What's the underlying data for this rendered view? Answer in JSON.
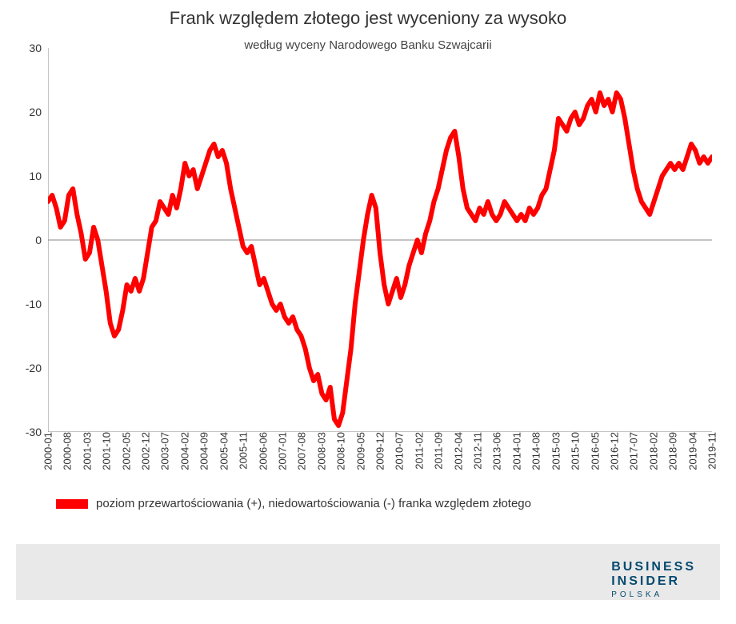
{
  "chart": {
    "type": "line",
    "title": "Frank względem złotego jest wyceniony za wysoko",
    "subtitle": "według wyceny Narodowego Banku Szwajcarii",
    "title_fontsize": 22,
    "subtitle_fontsize": 15,
    "background_color": "#ffffff",
    "line_color": "#ff0000",
    "line_width": 6,
    "zero_line_color": "#888888",
    "axis_color": "#888888",
    "ylim": [
      -30,
      30
    ],
    "ytick_step": 10,
    "yticks": [
      -30,
      -20,
      -10,
      0,
      10,
      20,
      30
    ],
    "xticks": [
      "2000-01",
      "2000-08",
      "2001-03",
      "2001-10",
      "2002-05",
      "2002-12",
      "2003-07",
      "2004-02",
      "2004-09",
      "2005-04",
      "2005-11",
      "2006-06",
      "2007-01",
      "2007-08",
      "2008-03",
      "2008-10",
      "2009-05",
      "2009-12",
      "2010-07",
      "2011-02",
      "2011-09",
      "2012-04",
      "2012-11",
      "2013-06",
      "2014-01",
      "2014-08",
      "2015-03",
      "2015-10",
      "2016-05",
      "2016-12",
      "2017-07",
      "2018-02",
      "2018-09",
      "2019-04",
      "2019-11"
    ],
    "xtick_fontsize": 13,
    "ytick_fontsize": 14,
    "series": [
      {
        "name": "overvaluation",
        "values": [
          6,
          7,
          5,
          2,
          3,
          7,
          8,
          4,
          1,
          -3,
          -2,
          2,
          0,
          -4,
          -8,
          -13,
          -15,
          -14,
          -11,
          -7,
          -8,
          -6,
          -8,
          -6,
          -2,
          2,
          3,
          6,
          5,
          4,
          7,
          5,
          8,
          12,
          10,
          11,
          8,
          10,
          12,
          14,
          15,
          13,
          14,
          12,
          8,
          5,
          2,
          -1,
          -2,
          -1,
          -4,
          -7,
          -6,
          -8,
          -10,
          -11,
          -10,
          -12,
          -13,
          -12,
          -14,
          -15,
          -17,
          -20,
          -22,
          -21,
          -24,
          -25,
          -23,
          -28,
          -29,
          -27,
          -22,
          -17,
          -10,
          -5,
          0,
          4,
          7,
          5,
          -2,
          -7,
          -10,
          -8,
          -6,
          -9,
          -7,
          -4,
          -2,
          0,
          -2,
          1,
          3,
          6,
          8,
          11,
          14,
          16,
          17,
          13,
          8,
          5,
          4,
          3,
          5,
          4,
          6,
          4,
          3,
          4,
          6,
          5,
          4,
          3,
          4,
          3,
          5,
          4,
          5,
          7,
          8,
          11,
          14,
          19,
          18,
          17,
          19,
          20,
          18,
          19,
          21,
          22,
          20,
          23,
          21,
          22,
          20,
          23,
          22,
          19,
          15,
          11,
          8,
          6,
          5,
          4,
          6,
          8,
          10,
          11,
          12,
          11,
          12,
          11,
          13,
          15,
          14,
          12,
          13,
          12,
          13
        ]
      }
    ],
    "legend": {
      "swatch_color": "#ff0000",
      "text": "poziom przewartościowania (+), niedowartościowania (-) franka względem złotego"
    }
  },
  "brand": {
    "line1": "BUSINESS",
    "line2": "INSIDER",
    "line3": "POLSKA",
    "color": "#054a6e"
  },
  "footer": {
    "background": "#e9e9e9"
  }
}
